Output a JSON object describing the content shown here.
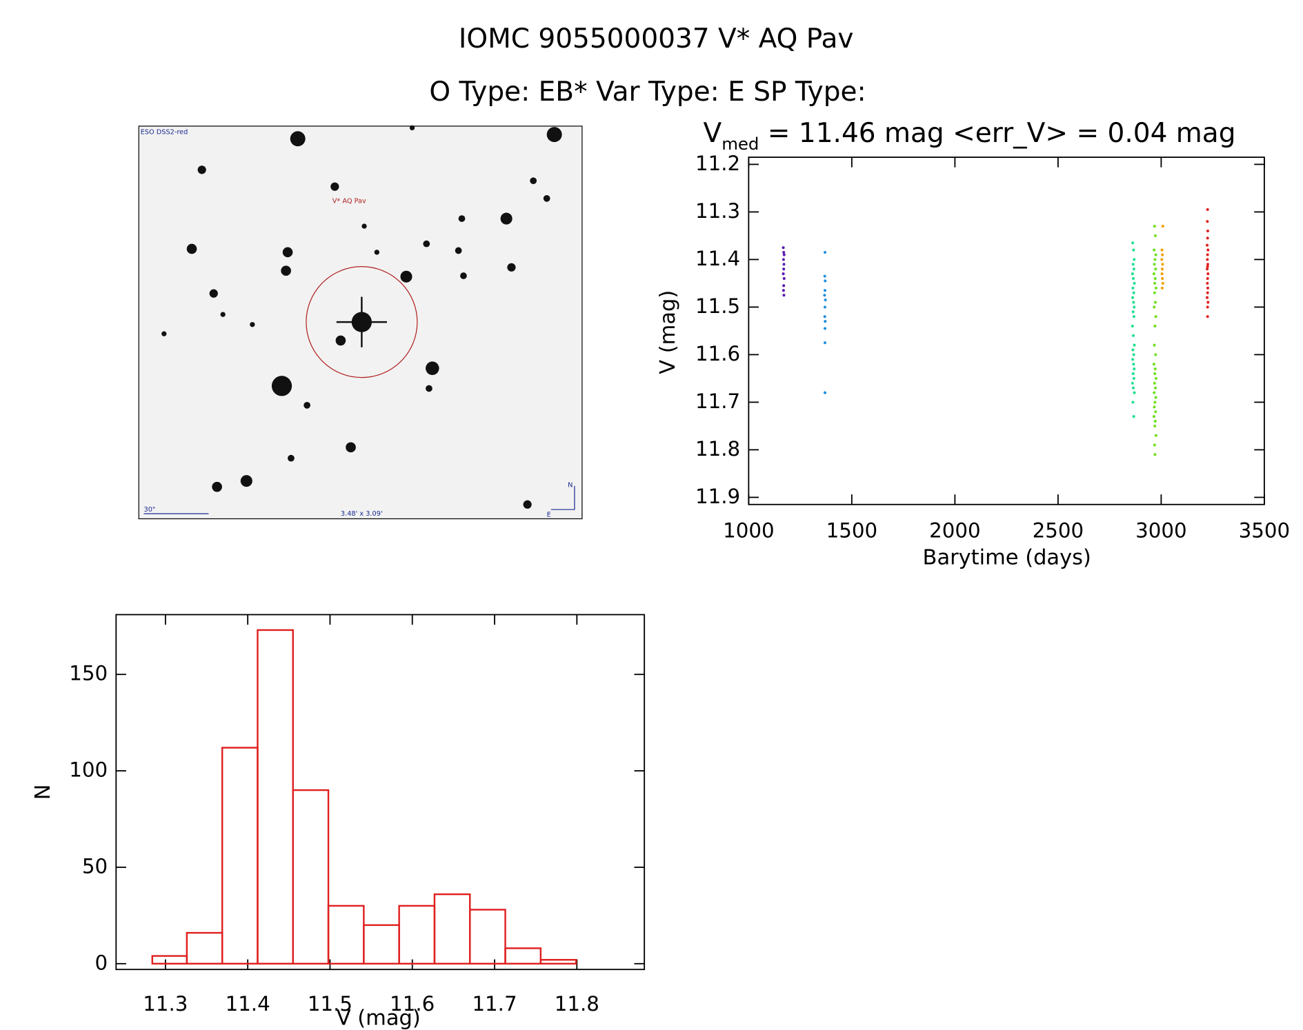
{
  "title": "IOMC 9055000037   V* AQ Pav",
  "subtitle": "O Type: EB*  Var Type: E  SP Type:",
  "finder": {
    "survey": "ESO DSS2-red",
    "target": "V* AQ Pav",
    "scale": "30\"",
    "size": "3.48' x 3.09'",
    "north": "N",
    "east": "E"
  },
  "chart_data": [
    {
      "type": "scatter",
      "title": "V",
      "title_subscript": "med",
      "title_rest": " = 11.46 mag <err_V> = 0.04 mag",
      "x_label": "Barytime (days)",
      "y_label": "V (mag)",
      "xlim": [
        1000,
        3500
      ],
      "xticks": [
        1000,
        1500,
        2000,
        2500,
        3000,
        3500
      ],
      "ylim": [
        11.915,
        11.185
      ],
      "yticks": [
        11.2,
        11.3,
        11.4,
        11.5,
        11.6,
        11.7,
        11.8,
        11.9
      ],
      "series": [
        {
          "color": "#5a1ab0",
          "x": [
            1168,
            1170,
            1172,
            1169,
            1171,
            1170,
            1168,
            1172,
            1170,
            1169,
            1171
          ],
          "values": [
            11.375,
            11.385,
            11.39,
            11.4,
            11.41,
            11.42,
            11.43,
            11.44,
            11.455,
            11.465,
            11.475
          ]
        },
        {
          "color": "#1e90e0",
          "x": [
            1370,
            1369,
            1371,
            1370,
            1368,
            1372,
            1370,
            1369,
            1371,
            1370,
            1370,
            1370
          ],
          "values": [
            11.385,
            11.435,
            11.445,
            11.465,
            11.475,
            11.485,
            11.5,
            11.52,
            11.53,
            11.545,
            11.575,
            11.68
          ]
        },
        {
          "color": "#20e090",
          "x": [
            2862,
            2866,
            2869,
            2864,
            2868,
            2861,
            2865,
            2870,
            2863,
            2867,
            2862,
            2866,
            2869,
            2864,
            2868,
            2861,
            2865,
            2870,
            2863,
            2867,
            2862,
            2866,
            2869,
            2864,
            2868,
            2861,
            2865,
            2870,
            2863,
            2867
          ],
          "values": [
            11.365,
            11.38,
            11.4,
            11.41,
            11.42,
            11.43,
            11.44,
            11.45,
            11.46,
            11.47,
            11.48,
            11.49,
            11.5,
            11.51,
            11.52,
            11.54,
            11.56,
            11.58,
            11.59,
            11.6,
            11.61,
            11.62,
            11.63,
            11.64,
            11.65,
            11.66,
            11.67,
            11.68,
            11.7,
            11.73
          ]
        },
        {
          "color": "#70e020",
          "x": [
            2968,
            2972,
            2966,
            2974,
            2970,
            2967,
            2973,
            2965,
            2971,
            2969,
            2975,
            2968,
            2972,
            2966,
            2974,
            2970,
            2967,
            2973,
            2965,
            2971,
            2969,
            2975,
            2968,
            2972,
            2966,
            2974,
            2970,
            2967,
            2973,
            2965,
            2971,
            2969,
            2975,
            2968,
            2970
          ],
          "values": [
            11.33,
            11.35,
            11.38,
            11.39,
            11.4,
            11.41,
            11.42,
            11.43,
            11.44,
            11.45,
            11.46,
            11.47,
            11.49,
            11.5,
            11.52,
            11.54,
            11.58,
            11.6,
            11.62,
            11.63,
            11.64,
            11.65,
            11.66,
            11.67,
            11.68,
            11.69,
            11.7,
            11.71,
            11.72,
            11.73,
            11.74,
            11.75,
            11.77,
            11.79,
            11.81
          ]
        },
        {
          "color": "#f0a000",
          "x": [
            3008,
            3004,
            3006,
            3003,
            3007,
            3005,
            3004,
            3006,
            3008,
            3005
          ],
          "values": [
            11.33,
            11.38,
            11.39,
            11.4,
            11.41,
            11.42,
            11.43,
            11.44,
            11.45,
            11.46
          ]
        },
        {
          "color": "#e02020",
          "x": [
            3225,
            3224,
            3226,
            3225,
            3223,
            3227,
            3225,
            3224,
            3226,
            3225,
            3223,
            3227,
            3225,
            3224,
            3226,
            3225,
            3223,
            3227,
            3225,
            3225
          ],
          "values": [
            11.295,
            11.32,
            11.34,
            11.355,
            11.37,
            11.38,
            11.39,
            11.4,
            11.41,
            11.415,
            11.42,
            11.43,
            11.44,
            11.45,
            11.46,
            11.47,
            11.48,
            11.49,
            11.5,
            11.52
          ]
        }
      ]
    },
    {
      "type": "histogram",
      "x_label": "V (mag)",
      "y_label": "N",
      "color": "#e02020",
      "xlim": [
        11.24,
        11.882
      ],
      "xticks": [
        11.3,
        11.4,
        11.5,
        11.6,
        11.7,
        11.8
      ],
      "ylim": [
        -3,
        181
      ],
      "yticks": [
        0,
        50,
        100,
        150
      ],
      "bins": [
        11.284,
        11.326,
        11.369,
        11.412,
        11.455,
        11.498,
        11.541,
        11.584,
        11.627,
        11.67,
        11.713,
        11.756,
        11.799
      ],
      "values": [
        4,
        16,
        112,
        173,
        90,
        30,
        20,
        30,
        36,
        28,
        8,
        2
      ]
    }
  ]
}
